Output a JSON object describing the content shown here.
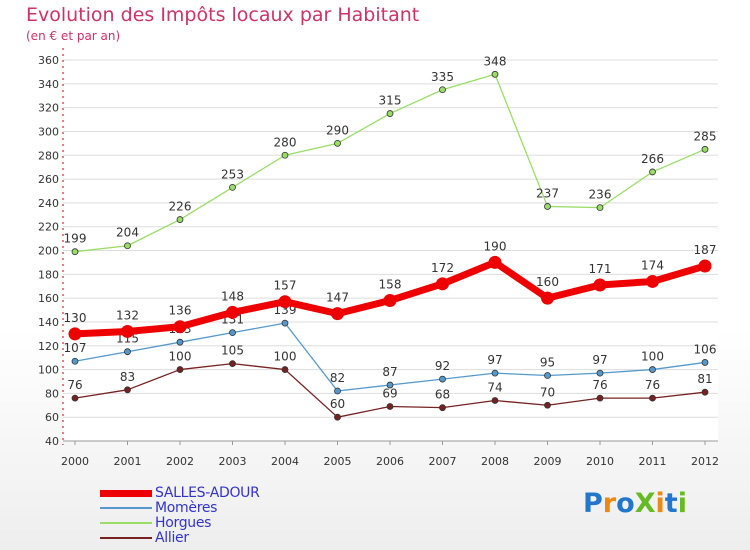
{
  "title": "Evolution des Impôts locaux par Habitant",
  "subtitle": "(en € et par an)",
  "logo": "ProXiti",
  "chart_data": {
    "type": "line",
    "title": "Evolution des Impôts locaux par Habitant",
    "subtitle": "(en € et par an)",
    "xlabel": "",
    "ylabel": "",
    "x": [
      "2000",
      "2001",
      "2002",
      "2003",
      "2004",
      "2005",
      "2006",
      "2007",
      "2008",
      "2009",
      "2010",
      "2011",
      "2012"
    ],
    "ylim": [
      40,
      360
    ],
    "yticks": [
      40,
      60,
      80,
      100,
      120,
      140,
      160,
      180,
      200,
      220,
      240,
      260,
      280,
      300,
      320,
      340,
      360
    ],
    "grid": "horizontal",
    "legend_position": "bottom-left",
    "series": [
      {
        "name": "SALLES-ADOUR",
        "color": "#ee0000",
        "values": [
          130,
          132,
          136,
          148,
          157,
          147,
          158,
          172,
          190,
          160,
          171,
          174,
          187
        ]
      },
      {
        "name": "Momères",
        "color": "#5599cc",
        "values": [
          107,
          115,
          123,
          131,
          139,
          82,
          87,
          92,
          97,
          95,
          97,
          100,
          106
        ]
      },
      {
        "name": "Horgues",
        "color": "#99dd66",
        "values": [
          199,
          204,
          226,
          253,
          280,
          290,
          315,
          335,
          348,
          237,
          236,
          266,
          285
        ]
      },
      {
        "name": "Allier",
        "color": "#772222",
        "values": [
          76,
          83,
          100,
          105,
          100,
          60,
          69,
          68,
          74,
          70,
          76,
          76,
          81
        ]
      }
    ]
  }
}
